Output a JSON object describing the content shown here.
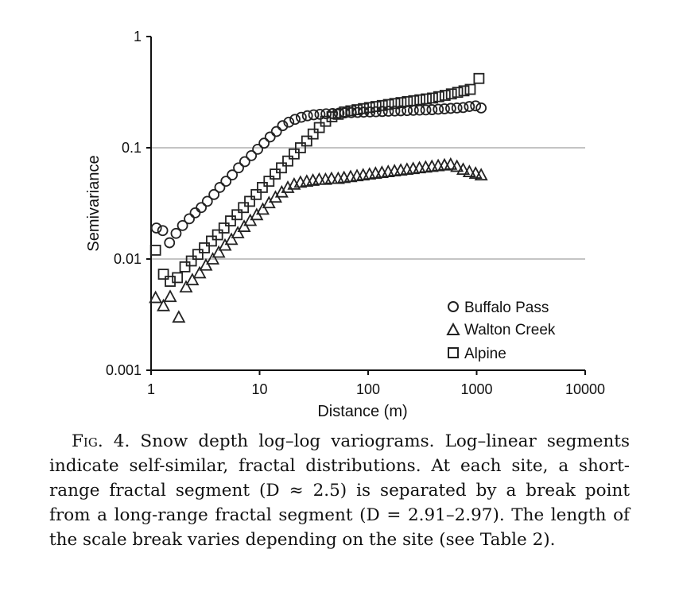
{
  "chart_data": {
    "type": "scatter",
    "xlabel": "Distance (m)",
    "ylabel": "Semivariance",
    "xscale": "log",
    "yscale": "log",
    "xlim": [
      1,
      10000
    ],
    "ylim": [
      0.001,
      1
    ],
    "x_ticks": [
      1,
      10,
      100,
      1000,
      10000
    ],
    "x_tick_labels": [
      "1",
      "10",
      "100",
      "1000",
      "10000"
    ],
    "y_ticks": [
      0.001,
      0.01,
      0.1,
      1
    ],
    "y_tick_labels": [
      "0.001",
      "0.01",
      "0.1",
      "1"
    ],
    "grid": "horizontal gridlines at 0.01 and 0.1",
    "legend_position": "bottom-right",
    "series": [
      {
        "name": "Buffalo Pass",
        "marker": "circle",
        "x": [
          1.12,
          1.28,
          1.48,
          1.7,
          1.95,
          2.25,
          2.55,
          2.9,
          3.3,
          3.8,
          4.3,
          4.9,
          5.6,
          6.4,
          7.3,
          8.4,
          9.6,
          11,
          12.5,
          14.3,
          16.3,
          18.6,
          21.2,
          24.2,
          27.6,
          31.5,
          36,
          41,
          47,
          54,
          61,
          70,
          80,
          91,
          104,
          118,
          135,
          154,
          176,
          200,
          229,
          261,
          298,
          340,
          388,
          443,
          505,
          577,
          658,
          751,
          857,
          978,
          1100
        ],
        "y": [
          0.019,
          0.018,
          0.014,
          0.017,
          0.02,
          0.023,
          0.026,
          0.029,
          0.033,
          0.038,
          0.044,
          0.05,
          0.057,
          0.066,
          0.075,
          0.085,
          0.097,
          0.11,
          0.125,
          0.14,
          0.158,
          0.17,
          0.18,
          0.188,
          0.194,
          0.198,
          0.2,
          0.202,
          0.203,
          0.205,
          0.206,
          0.207,
          0.208,
          0.209,
          0.21,
          0.211,
          0.212,
          0.213,
          0.214,
          0.215,
          0.216,
          0.217,
          0.218,
          0.219,
          0.22,
          0.222,
          0.224,
          0.226,
          0.228,
          0.23,
          0.235,
          0.238,
          0.228
        ]
      },
      {
        "name": "Walton Creek",
        "marker": "triangle",
        "x": [
          1.1,
          1.3,
          1.5,
          1.8,
          2.1,
          2.4,
          2.8,
          3.2,
          3.7,
          4.2,
          4.8,
          5.5,
          6.3,
          7.2,
          8.2,
          9.4,
          10.7,
          12.2,
          14,
          16,
          18.2,
          20.8,
          23.8,
          27.2,
          31,
          35.4,
          40.5,
          46,
          53,
          60,
          69,
          79,
          90,
          103,
          117,
          134,
          153,
          175,
          200,
          228,
          260,
          297,
          339,
          387,
          442,
          505,
          576,
          658,
          751,
          857,
          978,
          1100
        ],
        "y": [
          0.0045,
          0.0038,
          0.0046,
          0.003,
          0.0056,
          0.0065,
          0.0075,
          0.0088,
          0.01,
          0.0115,
          0.0133,
          0.015,
          0.0172,
          0.0196,
          0.0222,
          0.025,
          0.028,
          0.032,
          0.036,
          0.04,
          0.044,
          0.047,
          0.049,
          0.05,
          0.051,
          0.052,
          0.052,
          0.053,
          0.053,
          0.054,
          0.055,
          0.056,
          0.057,
          0.058,
          0.059,
          0.06,
          0.061,
          0.062,
          0.063,
          0.064,
          0.065,
          0.066,
          0.067,
          0.068,
          0.069,
          0.07,
          0.071,
          0.068,
          0.064,
          0.061,
          0.059,
          0.057
        ]
      },
      {
        "name": "Alpine",
        "marker": "square",
        "x": [
          1.1,
          1.3,
          1.5,
          1.75,
          2.05,
          2.35,
          2.7,
          3.1,
          3.6,
          4.1,
          4.7,
          5.4,
          6.2,
          7.1,
          8.1,
          9.3,
          10.6,
          12.2,
          13.9,
          15.9,
          18.2,
          20.8,
          23.8,
          27.2,
          31.1,
          35.5,
          40.6,
          46.4,
          53,
          60.6,
          69.3,
          79.2,
          90.5,
          103,
          118,
          135,
          154,
          176,
          201,
          230,
          263,
          300,
          343,
          392,
          448,
          512,
          585,
          668,
          764,
          873,
          1050
        ],
        "y": [
          0.012,
          0.0073,
          0.0063,
          0.0068,
          0.0085,
          0.0096,
          0.011,
          0.0126,
          0.0145,
          0.0165,
          0.019,
          0.022,
          0.025,
          0.029,
          0.033,
          0.038,
          0.044,
          0.05,
          0.058,
          0.066,
          0.076,
          0.088,
          0.1,
          0.115,
          0.133,
          0.152,
          0.173,
          0.19,
          0.2,
          0.21,
          0.215,
          0.22,
          0.225,
          0.23,
          0.235,
          0.24,
          0.245,
          0.25,
          0.255,
          0.26,
          0.265,
          0.27,
          0.275,
          0.28,
          0.288,
          0.296,
          0.305,
          0.315,
          0.325,
          0.335,
          0.42
        ]
      }
    ]
  },
  "legend": {
    "buffalo_pass": "Buffalo Pass",
    "walton_creek": "Walton Creek",
    "alpine": "Alpine"
  },
  "caption": {
    "label": "Fig. 4.",
    "text": "Snow depth log–log variograms. Log–linear segments indicate self-similar, fractal distributions. At each site, a short-range fractal segment (D ≈ 2.5) is separated by a break point from a long-range fractal segment (D = 2.91–2.97). The length of the scale break varies depending on the site (see Table 2)."
  }
}
